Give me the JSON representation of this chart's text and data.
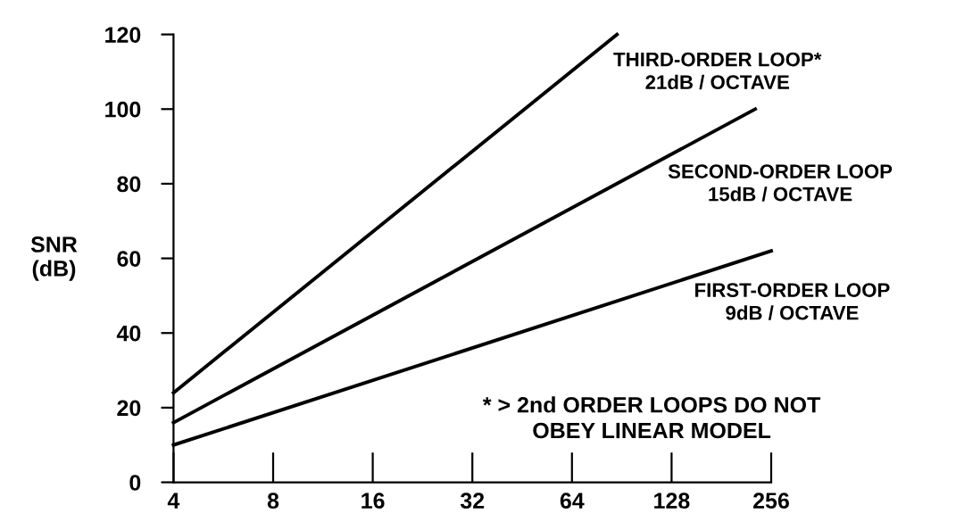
{
  "chart_data": {
    "type": "line",
    "ylabel": "SNR\n(dB)",
    "log": "x",
    "xlim": [
      4,
      256
    ],
    "xticks": [
      4,
      8,
      16,
      32,
      64,
      128,
      256
    ],
    "ylim": [
      0,
      120
    ],
    "yticks": [
      0,
      20,
      40,
      60,
      80,
      100,
      120
    ],
    "series": [
      {
        "name": "THIRD-ORDER LOOP*\n21dB / OCTAVE",
        "color": "#000000",
        "x": [
          4,
          87.5
        ],
        "values": [
          24,
          120
        ]
      },
      {
        "name": "SECOND-ORDER LOOP\n15dB / OCTAVE",
        "color": "#000000",
        "x": [
          4,
          229
        ],
        "values": [
          16,
          100
        ]
      },
      {
        "name": "FIRST-ORDER LOOP\n9dB / OCTAVE",
        "color": "#000000",
        "x": [
          4,
          256
        ],
        "values": [
          10,
          62
        ]
      }
    ],
    "annotations": [
      "* > 2nd ORDER LOOPS DO NOT\nOBEY LINEAR MODEL"
    ],
    "grid": false,
    "legend": false,
    "marker": "none",
    "line_style": "solid"
  }
}
